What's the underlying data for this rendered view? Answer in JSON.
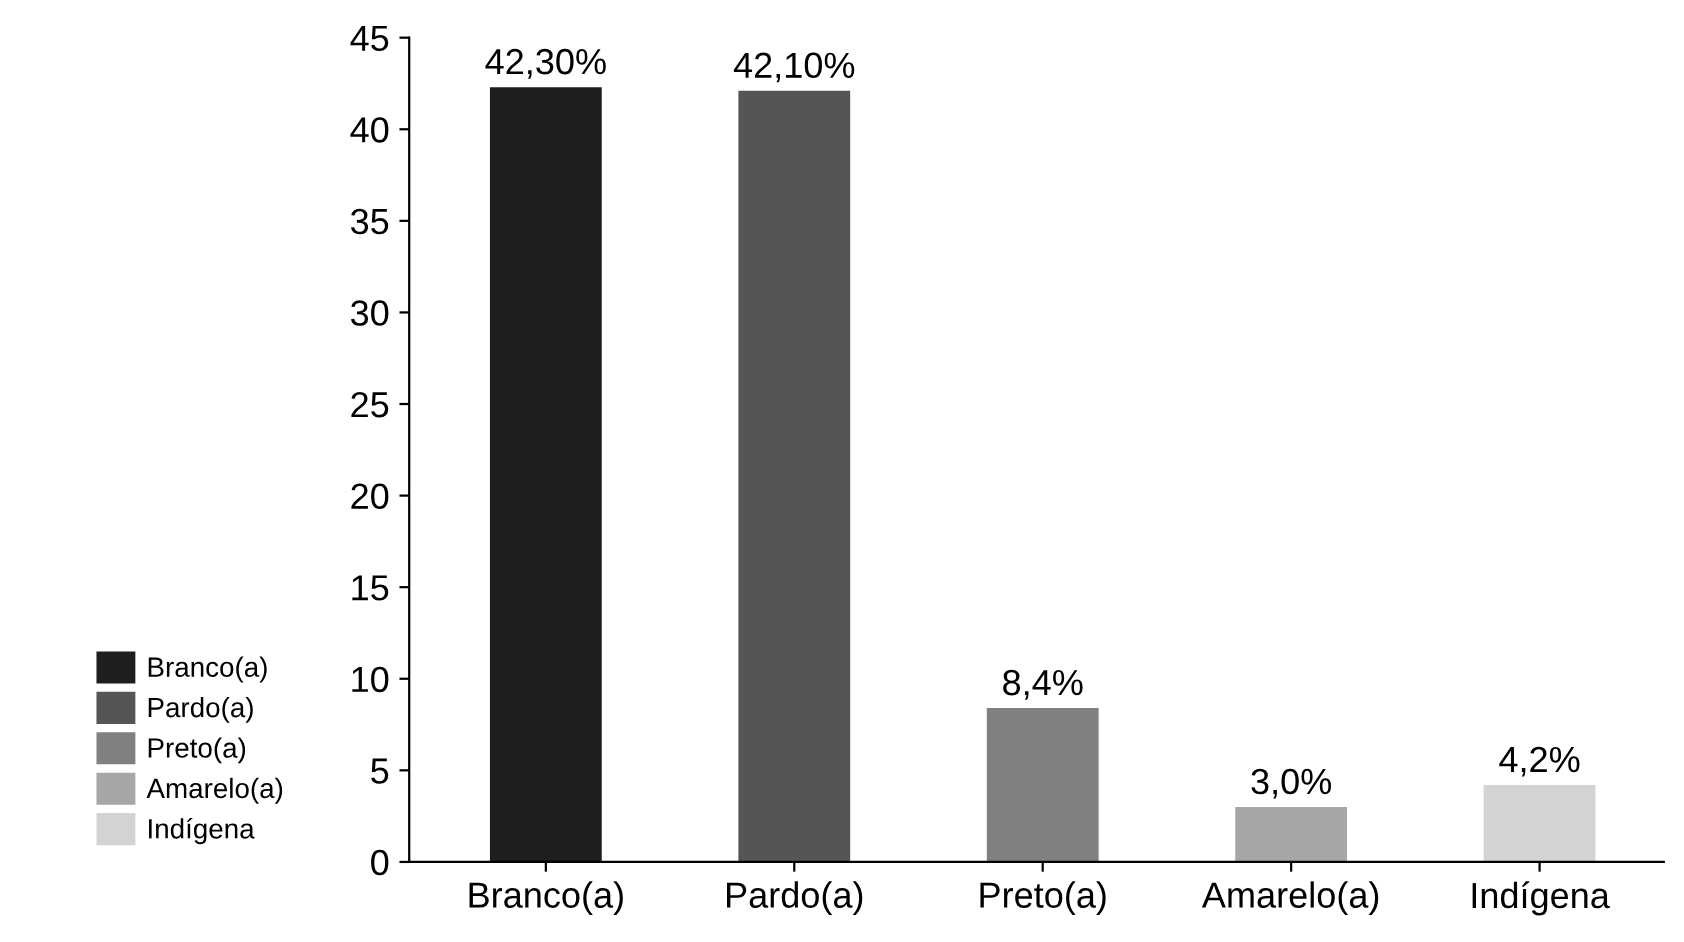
{
  "chart_data": {
    "type": "bar",
    "categories": [
      "Branco(a)",
      "Pardo(a)",
      "Preto(a)",
      "Amarelo(a)",
      "Indígena"
    ],
    "series": [
      {
        "name": "Branco(a)",
        "color": "#1e1e1e",
        "values": [
          42.3,
          null,
          null,
          null,
          null
        ],
        "value_labels": [
          "42,30%",
          null,
          null,
          null,
          null
        ]
      },
      {
        "name": "Pardo(a)",
        "color": "#555555",
        "values": [
          null,
          42.1,
          null,
          null,
          null
        ],
        "value_labels": [
          null,
          "42,10%",
          null,
          null,
          null
        ]
      },
      {
        "name": "Preto(a)",
        "color": "#808080",
        "values": [
          null,
          null,
          8.4,
          null,
          null
        ],
        "value_labels": [
          null,
          null,
          "8,4%",
          null,
          null
        ]
      },
      {
        "name": "Amarelo(a)",
        "color": "#a6a6a6",
        "values": [
          null,
          null,
          null,
          3.0,
          null
        ],
        "value_labels": [
          null,
          null,
          null,
          "3,0%",
          null
        ]
      },
      {
        "name": "Indígena",
        "color": "#d3d3d3",
        "values": [
          null,
          null,
          null,
          null,
          4.2
        ],
        "value_labels": [
          null,
          null,
          null,
          null,
          "4,2%"
        ]
      }
    ],
    "ylim": [
      0,
      45
    ],
    "yticks": [
      0,
      5,
      10,
      15,
      20,
      25,
      30,
      35,
      40,
      45
    ],
    "grid": false,
    "legend": "bottom left"
  }
}
